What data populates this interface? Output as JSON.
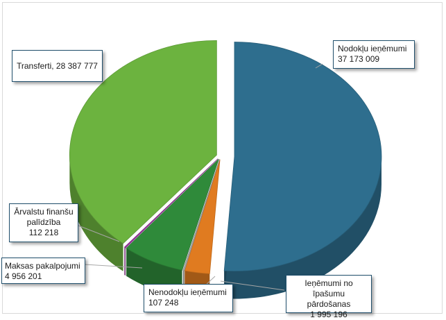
{
  "chart_data": {
    "type": "pie",
    "title": "",
    "slices": [
      {
        "label": "Nodokļu ieņēmumi",
        "value": 37173009,
        "value_text": "37 173 009",
        "color": "#2e6e8e"
      },
      {
        "label": "Ieņēmumi no īpašumu pārdošanas",
        "value": 1995196,
        "value_text": "1 995 196",
        "color": "#e07b20"
      },
      {
        "label": "Nenodokļu ieņēmumi",
        "value": 107248,
        "value_text": "107 248",
        "color": "#a9a9a9"
      },
      {
        "label": "Maksas pakalpojumi",
        "value": 4956201,
        "value_text": "4 956 201",
        "color": "#2f8a3a"
      },
      {
        "label": "Ārvalstu finanšu palīdzība",
        "value": 112218,
        "value_text": "112 218",
        "color": "#9b3a9e"
      },
      {
        "label": "Transferti",
        "value": 28387777,
        "value_text": "28 387 777",
        "color": "#6cb33f"
      }
    ],
    "legend": "none",
    "style": "3d-exploded-pie"
  },
  "labels": {
    "nodoklu_name": "Nodokļu ieņēmumi",
    "nodoklu_value": "37 173 009",
    "transferti_text": "Transferti, 28 387 777",
    "arvalstu_line1": "Ārvalstu finanšu",
    "arvalstu_line2": "palīdzība",
    "arvalstu_value": "112 218",
    "maksas_name": "Maksas pakalpojumi",
    "maksas_value": "4 956 201",
    "nenodoklu_name": "Nenodokļu ieņēmumi",
    "nenodoklu_value": "107 248",
    "ipasumu_line1": "Ieņēmumi no",
    "ipasumu_line2": "īpašumu pārdošanas",
    "ipasumu_value": "1 995 196"
  }
}
